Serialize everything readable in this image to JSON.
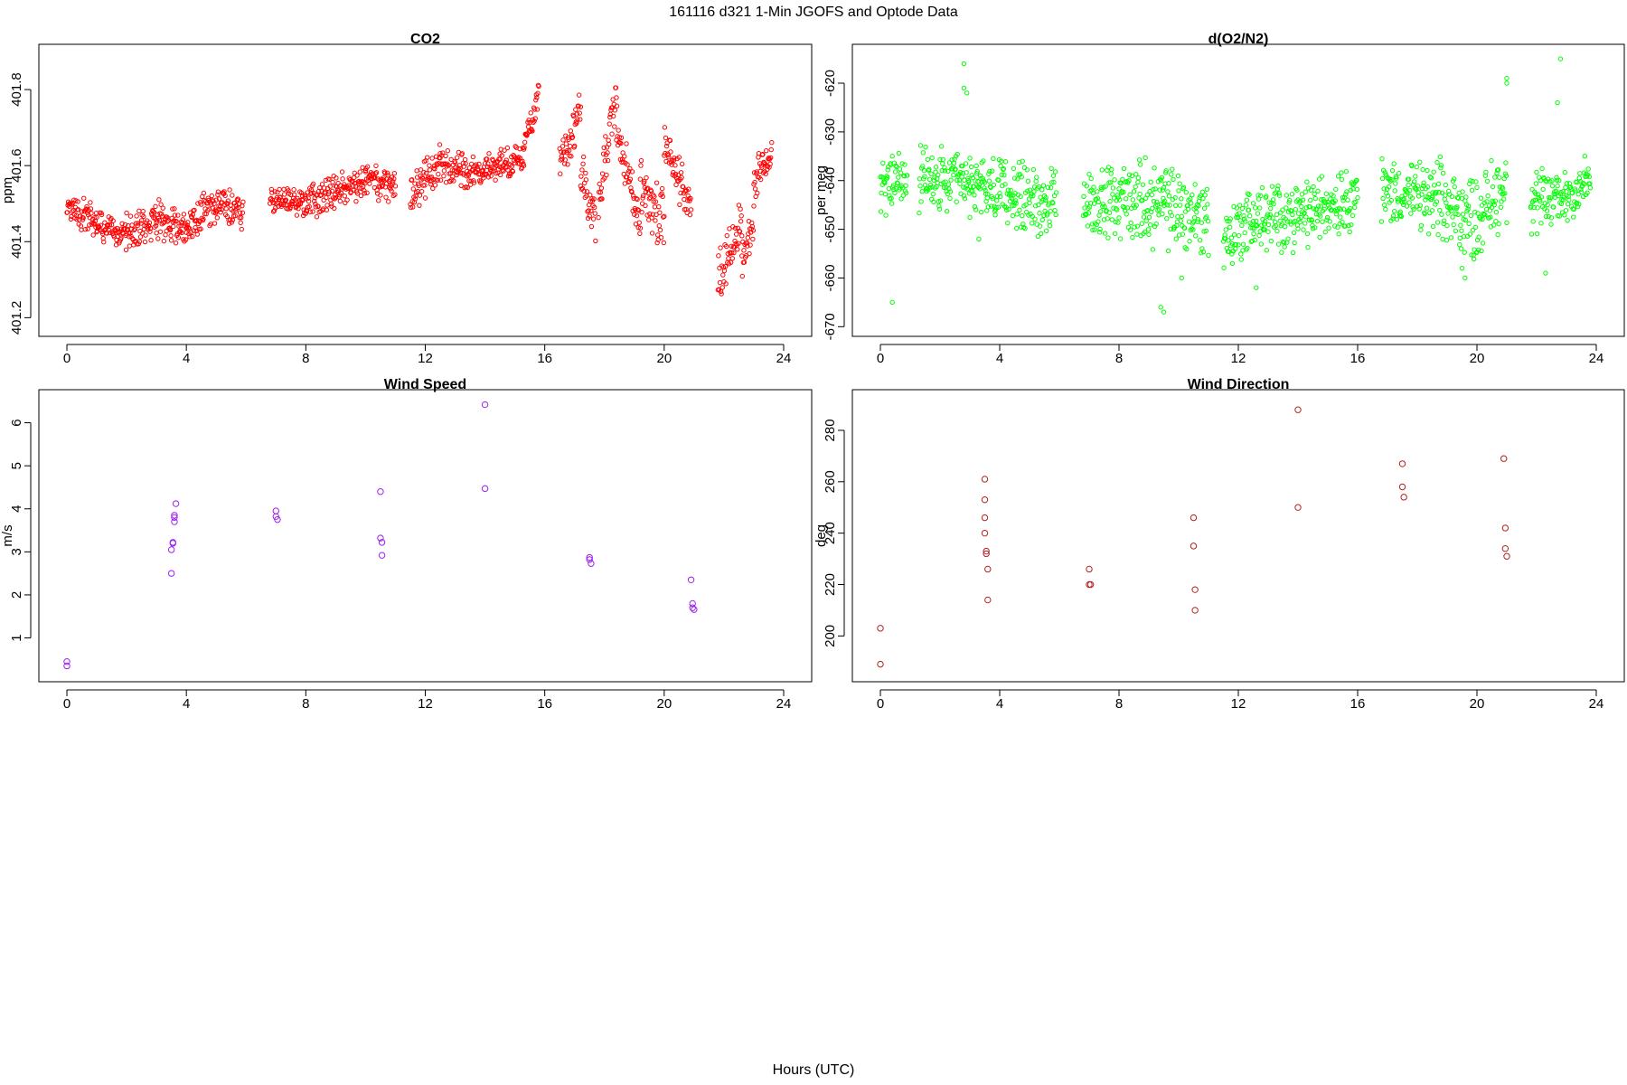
{
  "figure": {
    "title": "161116   d321   1-Min  JGOFS and Optode Data",
    "xlabel": "Hours (UTC)"
  },
  "chart_data": [
    {
      "type": "scatter",
      "title": "CO2",
      "xlabel": "",
      "ylabel": "ppm",
      "xlim": [
        0,
        24
      ],
      "ylim": [
        401.17,
        401.9
      ],
      "xticks": [
        0,
        4,
        8,
        12,
        16,
        20,
        24
      ],
      "yticks": [
        401.2,
        401.4,
        401.6,
        401.8
      ],
      "ytick_labels": [
        "401.2",
        "401.4",
        "401.6",
        "401.8"
      ],
      "color": "#ff0000",
      "marker_size": 2.2,
      "segments": [
        {
          "x": [
            0.0,
            1.0
          ],
          "y": [
            401.5,
            401.45
          ],
          "spread": 0.05
        },
        {
          "x": [
            1.0,
            2.0
          ],
          "y": [
            401.45,
            401.42
          ],
          "spread": 0.05
        },
        {
          "x": [
            2.0,
            3.0
          ],
          "y": [
            401.42,
            401.46
          ],
          "spread": 0.06
        },
        {
          "x": [
            3.0,
            4.0
          ],
          "y": [
            401.46,
            401.44
          ],
          "spread": 0.06
        },
        {
          "x": [
            4.0,
            5.0
          ],
          "y": [
            401.44,
            401.5
          ],
          "spread": 0.06
        },
        {
          "x": [
            5.0,
            5.9
          ],
          "y": [
            401.5,
            401.48
          ],
          "spread": 0.06
        },
        {
          "x": [
            6.8,
            8.0
          ],
          "y": [
            401.51,
            401.5
          ],
          "spread": 0.04
        },
        {
          "x": [
            8.0,
            9.0
          ],
          "y": [
            401.5,
            401.53
          ],
          "spread": 0.05
        },
        {
          "x": [
            9.0,
            10.0
          ],
          "y": [
            401.53,
            401.56
          ],
          "spread": 0.05
        },
        {
          "x": [
            10.0,
            11.0
          ],
          "y": [
            401.56,
            401.54
          ],
          "spread": 0.05
        },
        {
          "x": [
            11.5,
            12.5
          ],
          "y": [
            401.52,
            401.6
          ],
          "spread": 0.06
        },
        {
          "x": [
            12.5,
            13.5
          ],
          "y": [
            401.6,
            401.58
          ],
          "spread": 0.06
        },
        {
          "x": [
            13.5,
            14.5
          ],
          "y": [
            401.58,
            401.6
          ],
          "spread": 0.05
        },
        {
          "x": [
            14.5,
            15.3
          ],
          "y": [
            401.6,
            401.62
          ],
          "spread": 0.05
        },
        {
          "x": [
            15.3,
            15.8
          ],
          "y": [
            401.65,
            401.8
          ],
          "spread": 0.05
        },
        {
          "x": [
            16.5,
            17.2
          ],
          "y": [
            401.6,
            401.75
          ],
          "spread": 0.08
        },
        {
          "x": [
            17.2,
            17.7
          ],
          "y": [
            401.6,
            401.45
          ],
          "spread": 0.07
        },
        {
          "x": [
            17.8,
            18.4
          ],
          "y": [
            401.5,
            401.8
          ],
          "spread": 0.07
        },
        {
          "x": [
            18.4,
            19.2
          ],
          "y": [
            401.7,
            401.45
          ],
          "spread": 0.07
        },
        {
          "x": [
            19.2,
            20.0
          ],
          "y": [
            401.55,
            401.45
          ],
          "spread": 0.1
        },
        {
          "x": [
            20.0,
            20.9
          ],
          "y": [
            401.65,
            401.5
          ],
          "spread": 0.07
        },
        {
          "x": [
            21.8,
            22.6
          ],
          "y": [
            401.3,
            401.45
          ],
          "spread": 0.08
        },
        {
          "x": [
            22.6,
            23.0
          ],
          "y": [
            401.35,
            401.45
          ],
          "spread": 0.06
        },
        {
          "x": [
            23.0,
            23.6
          ],
          "y": [
            401.55,
            401.65
          ],
          "spread": 0.06
        }
      ]
    },
    {
      "type": "scatter",
      "title": "d(O2/N2)",
      "xlabel": "",
      "ylabel": "per meg",
      "xlim": [
        0,
        24
      ],
      "ylim": [
        -670.5,
        -613.5
      ],
      "xticks": [
        0,
        4,
        8,
        12,
        16,
        20,
        24
      ],
      "yticks": [
        -670,
        -660,
        -650,
        -640,
        -630,
        -620
      ],
      "ytick_labels": [
        "-670",
        "-660",
        "-650",
        "-640",
        "-630",
        "-620"
      ],
      "color": "#00ff00",
      "marker_size": 2.2,
      "segments": [
        {
          "x": [
            0.0,
            0.9
          ],
          "y": [
            -641,
            -640
          ],
          "spread": 8
        },
        {
          "x": [
            1.3,
            3.0
          ],
          "y": [
            -640,
            -641
          ],
          "spread": 8
        },
        {
          "x": [
            3.0,
            4.5
          ],
          "y": [
            -641,
            -643
          ],
          "spread": 8
        },
        {
          "x": [
            4.5,
            5.9
          ],
          "y": [
            -643,
            -645
          ],
          "spread": 8
        },
        {
          "x": [
            6.8,
            8.0
          ],
          "y": [
            -645,
            -644
          ],
          "spread": 8
        },
        {
          "x": [
            8.0,
            9.5
          ],
          "y": [
            -644,
            -645
          ],
          "spread": 10
        },
        {
          "x": [
            9.5,
            11.0
          ],
          "y": [
            -645,
            -648
          ],
          "spread": 10
        },
        {
          "x": [
            11.5,
            12.5
          ],
          "y": [
            -652,
            -648
          ],
          "spread": 8
        },
        {
          "x": [
            12.5,
            14.0
          ],
          "y": [
            -648,
            -647
          ],
          "spread": 8
        },
        {
          "x": [
            14.0,
            16.0
          ],
          "y": [
            -647,
            -643
          ],
          "spread": 8
        },
        {
          "x": [
            16.8,
            18.5
          ],
          "y": [
            -642,
            -644
          ],
          "spread": 8
        },
        {
          "x": [
            18.5,
            20.0
          ],
          "y": [
            -644,
            -648
          ],
          "spread": 10
        },
        {
          "x": [
            20.0,
            21.0
          ],
          "y": [
            -648,
            -640
          ],
          "spread": 10
        },
        {
          "x": [
            21.8,
            23.0
          ],
          "y": [
            -645,
            -643
          ],
          "spread": 8
        },
        {
          "x": [
            23.0,
            23.8
          ],
          "y": [
            -643,
            -640
          ],
          "spread": 7
        }
      ],
      "extra_points": {
        "x": [
          0.4,
          2.8,
          2.8,
          2.9,
          3.3,
          9.4,
          9.5,
          10.1,
          11.8,
          12.6,
          19.5,
          19.6,
          21.0,
          21.0,
          22.3,
          22.7,
          22.8
        ],
        "y": [
          -665,
          -616,
          -621,
          -622,
          -652,
          -666,
          -667,
          -660,
          -657,
          -662,
          -658,
          -660,
          -619,
          -620,
          -659,
          -624,
          -615
        ]
      }
    },
    {
      "type": "scatter",
      "title": "Wind Speed",
      "xlabel": "",
      "ylabel": "m/s",
      "xlim": [
        0,
        24
      ],
      "ylim": [
        0.15,
        6.6
      ],
      "xticks": [
        0,
        4,
        8,
        12,
        16,
        20,
        24
      ],
      "yticks": [
        1,
        2,
        3,
        4,
        5,
        6
      ],
      "ytick_labels": [
        "1",
        "2",
        "3",
        "4",
        "5",
        "6"
      ],
      "color": "#a020f0",
      "marker_size": 3.2,
      "x": [
        0.0,
        0.0,
        3.5,
        3.5,
        3.55,
        3.55,
        3.6,
        3.6,
        3.6,
        3.65,
        7.0,
        7.0,
        7.05,
        10.5,
        10.5,
        10.55,
        10.55,
        14.0,
        14.0,
        17.5,
        17.5,
        17.55,
        20.9,
        20.95,
        20.95,
        21.0
      ],
      "y": [
        0.45,
        0.35,
        2.5,
        3.05,
        3.2,
        3.22,
        3.7,
        3.8,
        3.85,
        4.12,
        3.95,
        3.82,
        3.75,
        4.4,
        3.32,
        3.22,
        2.92,
        6.42,
        4.47,
        2.87,
        2.82,
        2.73,
        2.35,
        1.8,
        1.7,
        1.66
      ]
    },
    {
      "type": "scatter",
      "title": "Wind Direction",
      "xlabel": "",
      "ylabel": "deg",
      "xlim": [
        0,
        24
      ],
      "ylim": [
        185,
        293
      ],
      "xticks": [
        0,
        4,
        8,
        12,
        16,
        20,
        24
      ],
      "yticks": [
        200,
        220,
        240,
        260,
        280
      ],
      "ytick_labels": [
        "200",
        "220",
        "240",
        "260",
        "280"
      ],
      "color": "#b22222",
      "marker_size": 3.2,
      "x": [
        0.0,
        0.0,
        3.5,
        3.5,
        3.5,
        3.5,
        3.55,
        3.55,
        3.6,
        3.6,
        7.0,
        7.0,
        7.05,
        10.5,
        10.5,
        10.55,
        10.55,
        14.0,
        14.0,
        17.5,
        17.5,
        17.55,
        20.9,
        20.95,
        20.95,
        21.0
      ],
      "y": [
        203,
        189,
        261,
        253,
        246,
        240,
        233,
        232,
        226,
        214,
        226,
        220,
        220,
        246,
        235,
        218,
        210,
        288,
        250,
        267,
        258,
        254,
        269,
        242,
        234,
        231
      ]
    }
  ]
}
